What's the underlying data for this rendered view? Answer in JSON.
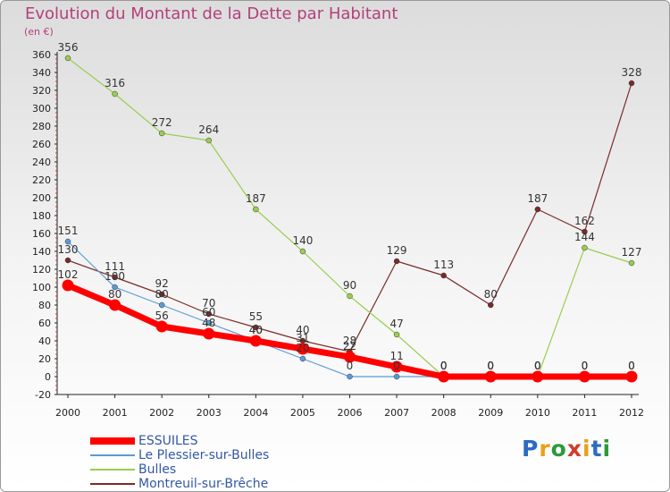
{
  "header": {
    "title": "Evolution du Montant de la Dette par Habitant",
    "unit": "(en €)"
  },
  "logo": {
    "text": "Proxiti"
  },
  "colors": {
    "ESSUILES": "#ff0000",
    "Le Plessier-sur-Bulles": "#5b9bd5",
    "Bulles": "#9acd50",
    "Montreuil-sur-Brêche": "#7a2a2a",
    "title": "#b3407c",
    "legend_text": "#3358a4"
  },
  "chart_data": {
    "type": "line",
    "title": "Evolution du Montant de la Dette par Habitant",
    "ylabel": "(en €)",
    "x": [
      "2000",
      "2001",
      "2002",
      "2003",
      "2004",
      "2005",
      "2006",
      "2007",
      "2008",
      "2009",
      "2010",
      "2011",
      "2012"
    ],
    "ylim": [
      -20,
      360
    ],
    "yticks": [
      -20,
      0,
      20,
      40,
      60,
      80,
      100,
      120,
      140,
      160,
      180,
      200,
      220,
      240,
      260,
      280,
      300,
      320,
      340,
      360
    ],
    "grid": false,
    "legend_position": "bottom-left",
    "series": [
      {
        "name": "Montreuil-sur-Brêche",
        "values": [
          130,
          111,
          92,
          70,
          55,
          40,
          28,
          129,
          113,
          80,
          187,
          162,
          328
        ]
      },
      {
        "name": "Bulles",
        "values": [
          356,
          316,
          272,
          264,
          187,
          140,
          90,
          47,
          0,
          0,
          0,
          144,
          127
        ]
      },
      {
        "name": "Le Plessier-sur-Bulles",
        "values": [
          151,
          100,
          80,
          60,
          40,
          20,
          0,
          0,
          0,
          0,
          0,
          0,
          0
        ]
      },
      {
        "name": "ESSUILES",
        "values": [
          102,
          80,
          56,
          48,
          40,
          31,
          22,
          11,
          0,
          0,
          0,
          0,
          0
        ]
      }
    ]
  }
}
